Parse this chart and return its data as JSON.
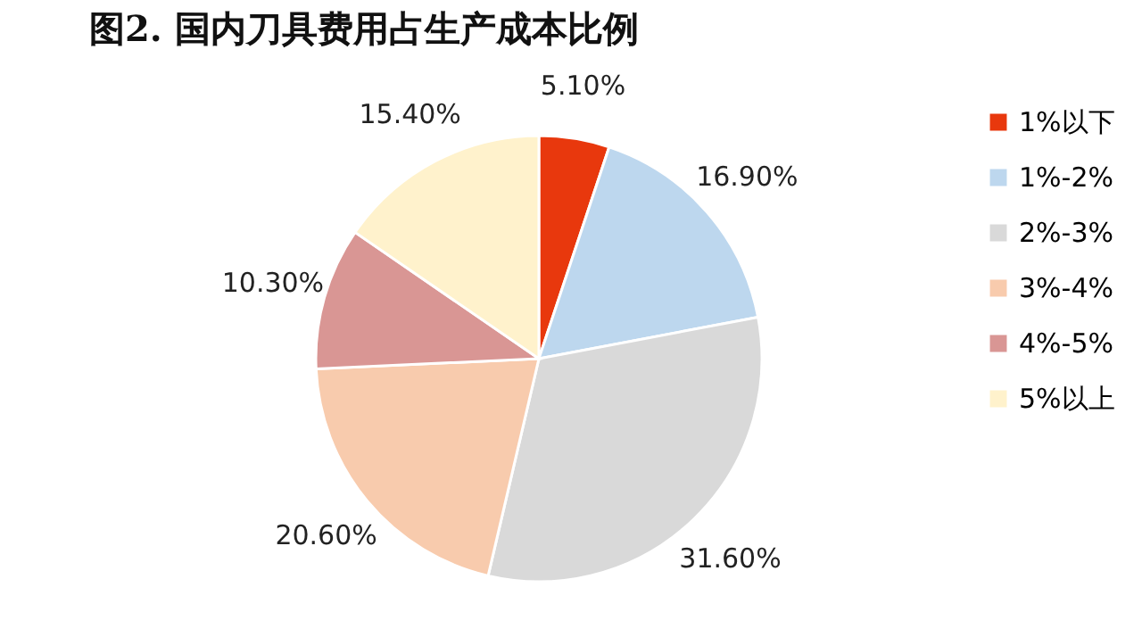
{
  "chart_data": {
    "type": "pie",
    "title": "图2. 国内刀具费用占生产成本比例",
    "categories": [
      "1%以下",
      "1%-2%",
      "2%-3%",
      "3%-4%",
      "4%-5%",
      "5%以上"
    ],
    "values": [
      5.1,
      16.9,
      31.6,
      20.6,
      10.3,
      15.4
    ],
    "value_labels": [
      "5.10%",
      "16.90%",
      "31.60%",
      "20.60%",
      "10.30%",
      "15.40%"
    ],
    "colors": [
      "#e8380d",
      "#bdd7ee",
      "#d9d9d9",
      "#f8cbad",
      "#d99694",
      "#fff2cc"
    ],
    "legend": "right"
  }
}
